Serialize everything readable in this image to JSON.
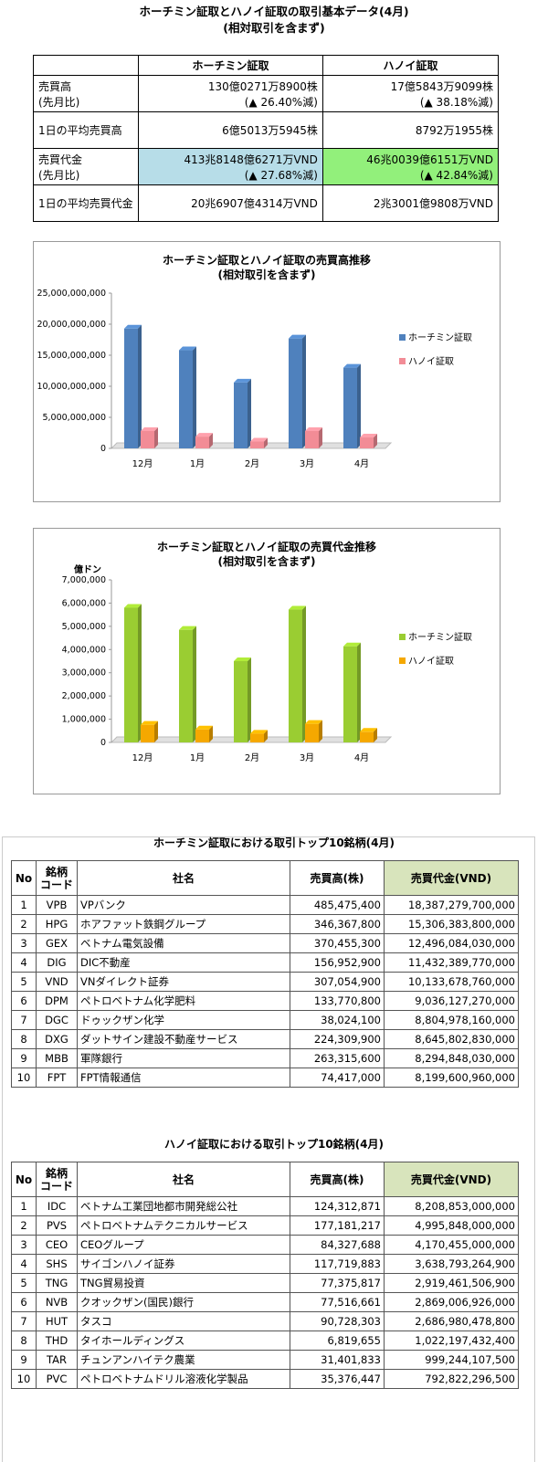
{
  "header": {
    "title_line1": "ホーチミン証取とハノイ証取の取引基本データ(4月)",
    "title_line2": "(相対取引を含まず)"
  },
  "basic_table": {
    "col_hcm": "ホーチミン証取",
    "col_hnx": "ハノイ証取",
    "rows": [
      {
        "label1": "売買高",
        "label2": "(先月比)",
        "hcm1": "130億0271万8900株",
        "hcm2": "(▲ 26.40%減)",
        "hnx1": "17億5843万9099株",
        "hnx2": "(▲ 38.18%減)"
      },
      {
        "label1": "1日の平均売買高",
        "hcm1": "6億5013万5945株",
        "hnx1": "8792万1955株"
      },
      {
        "label1": "売買代金",
        "label2": "(先月比)",
        "hcm1": "413兆8148億6271万VND",
        "hcm2": "(▲ 27.68%減)",
        "hnx1": "46兆0039億6151万VND",
        "hnx2": "(▲ 42.84%減)"
      },
      {
        "label1": "1日の平均売買代金",
        "hcm1": "20兆6907億4314万VND",
        "hnx1": "2兆3001億9808万VND"
      }
    ]
  },
  "chart_data": [
    {
      "type": "bar",
      "title": "ホーチミン証取とハノイ証取の売買高推移",
      "subtitle": "(相対取引を含まず)",
      "ylabel": "",
      "categories": [
        "12月",
        "1月",
        "2月",
        "3月",
        "4月"
      ],
      "ylim": [
        0,
        25000000000
      ],
      "yticks": [
        "0",
        "5,000,000,000",
        "10,000,000,000",
        "15,000,000,000",
        "20,000,000,000",
        "25,000,000,000"
      ],
      "series": [
        {
          "name": "ホーチミン証取",
          "values": [
            19300000000,
            15800000000,
            10600000000,
            17700000000,
            13000000000
          ],
          "color": "#4f81bd"
        },
        {
          "name": "ハノイ証取",
          "values": [
            2800000000,
            1900000000,
            1100000000,
            2800000000,
            1760000000
          ],
          "color": "#f28c96"
        }
      ],
      "legend": "right"
    },
    {
      "type": "bar",
      "title": "ホーチミン証取とハノイ証取の売買代金推移",
      "subtitle": "(相対取引を含まず)",
      "ylabel": "億ドン",
      "categories": [
        "12月",
        "1月",
        "2月",
        "3月",
        "4月"
      ],
      "ylim": [
        0,
        7000000
      ],
      "yticks": [
        "0",
        "1,000,000",
        "2,000,000",
        "3,000,000",
        "4,000,000",
        "5,000,000",
        "6,000,000",
        "7,000,000"
      ],
      "series": [
        {
          "name": "ホーチミン証取",
          "values": [
            5800000,
            4850000,
            3500000,
            5720000,
            4140000
          ],
          "color": "#9acd32"
        },
        {
          "name": "ハノイ証取",
          "values": [
            760000,
            560000,
            380000,
            800000,
            460000
          ],
          "color": "#f5a800"
        }
      ],
      "legend": "right"
    }
  ],
  "hcm_top": {
    "title": "ホーチミン証取における取引トップ10銘柄(4月)",
    "headers": {
      "no": "No",
      "code1": "銘柄",
      "code2": "コード",
      "name": "社名",
      "vol": "売買高(株)",
      "amt": "売買代金(VND)"
    },
    "rows": [
      {
        "no": "1",
        "code": "VPB",
        "name": "VPバンク",
        "vol": "485,475,400",
        "amt": "18,387,279,700,000"
      },
      {
        "no": "2",
        "code": "HPG",
        "name": "ホアファット鉄鋼グループ",
        "vol": "346,367,800",
        "amt": "15,306,383,800,000"
      },
      {
        "no": "3",
        "code": "GEX",
        "name": "ベトナム電気設備",
        "vol": "370,455,300",
        "amt": "12,496,084,030,000"
      },
      {
        "no": "4",
        "code": "DIG",
        "name": "DIC不動産",
        "vol": "156,952,900",
        "amt": "11,432,389,770,000"
      },
      {
        "no": "5",
        "code": "VND",
        "name": "VNダイレクト証券",
        "vol": "307,054,900",
        "amt": "10,133,678,760,000"
      },
      {
        "no": "6",
        "code": "DPM",
        "name": "ペトロベトナム化学肥料",
        "vol": "133,770,800",
        "amt": "9,036,127,270,000"
      },
      {
        "no": "7",
        "code": "DGC",
        "name": "ドゥックザン化学",
        "vol": "38,024,100",
        "amt": "8,804,978,160,000"
      },
      {
        "no": "8",
        "code": "DXG",
        "name": "ダットサイン建設不動産サービス",
        "vol": "224,309,900",
        "amt": "8,645,802,830,000"
      },
      {
        "no": "9",
        "code": "MBB",
        "name": "軍隊銀行",
        "vol": "263,315,600",
        "amt": "8,294,848,030,000"
      },
      {
        "no": "10",
        "code": "FPT",
        "name": "FPT情報通信",
        "vol": "74,417,000",
        "amt": "8,199,600,960,000"
      }
    ]
  },
  "hnx_top": {
    "title": "ハノイ証取における取引トップ10銘柄(4月)",
    "headers": {
      "no": "No",
      "code1": "銘柄",
      "code2": "コード",
      "name": "社名",
      "vol": "売買高(株)",
      "amt": "売買代金(VND)"
    },
    "rows": [
      {
        "no": "1",
        "code": "IDC",
        "name": "ベトナム工業団地都市開発総公社",
        "vol": "124,312,871",
        "amt": "8,208,853,000,000"
      },
      {
        "no": "2",
        "code": "PVS",
        "name": "ペトロベトナムテクニカルサービス",
        "vol": "177,181,217",
        "amt": "4,995,848,000,000"
      },
      {
        "no": "3",
        "code": "CEO",
        "name": "CEOグループ",
        "vol": "84,327,688",
        "amt": "4,170,455,000,000"
      },
      {
        "no": "4",
        "code": "SHS",
        "name": "サイゴンハノイ証券",
        "vol": "117,719,883",
        "amt": "3,638,793,264,900"
      },
      {
        "no": "5",
        "code": "TNG",
        "name": "TNG貿易投資",
        "vol": "77,375,817",
        "amt": "2,919,461,506,900"
      },
      {
        "no": "6",
        "code": "NVB",
        "name": "クオックザン(国民)銀行",
        "vol": "77,516,661",
        "amt": "2,869,006,926,000"
      },
      {
        "no": "7",
        "code": "HUT",
        "name": "タスコ",
        "vol": "90,728,303",
        "amt": "2,686,980,478,800"
      },
      {
        "no": "8",
        "code": "THD",
        "name": "タイホールディングス",
        "vol": "6,819,655",
        "amt": "1,022,197,432,400"
      },
      {
        "no": "9",
        "code": "TAR",
        "name": "チュンアンハイテク農業",
        "vol": "31,401,833",
        "amt": "999,244,107,500"
      },
      {
        "no": "10",
        "code": "PVC",
        "name": "ペトロベトナムドリル溶液化学製品",
        "vol": "35,376,447",
        "amt": "792,822,296,500"
      }
    ]
  }
}
